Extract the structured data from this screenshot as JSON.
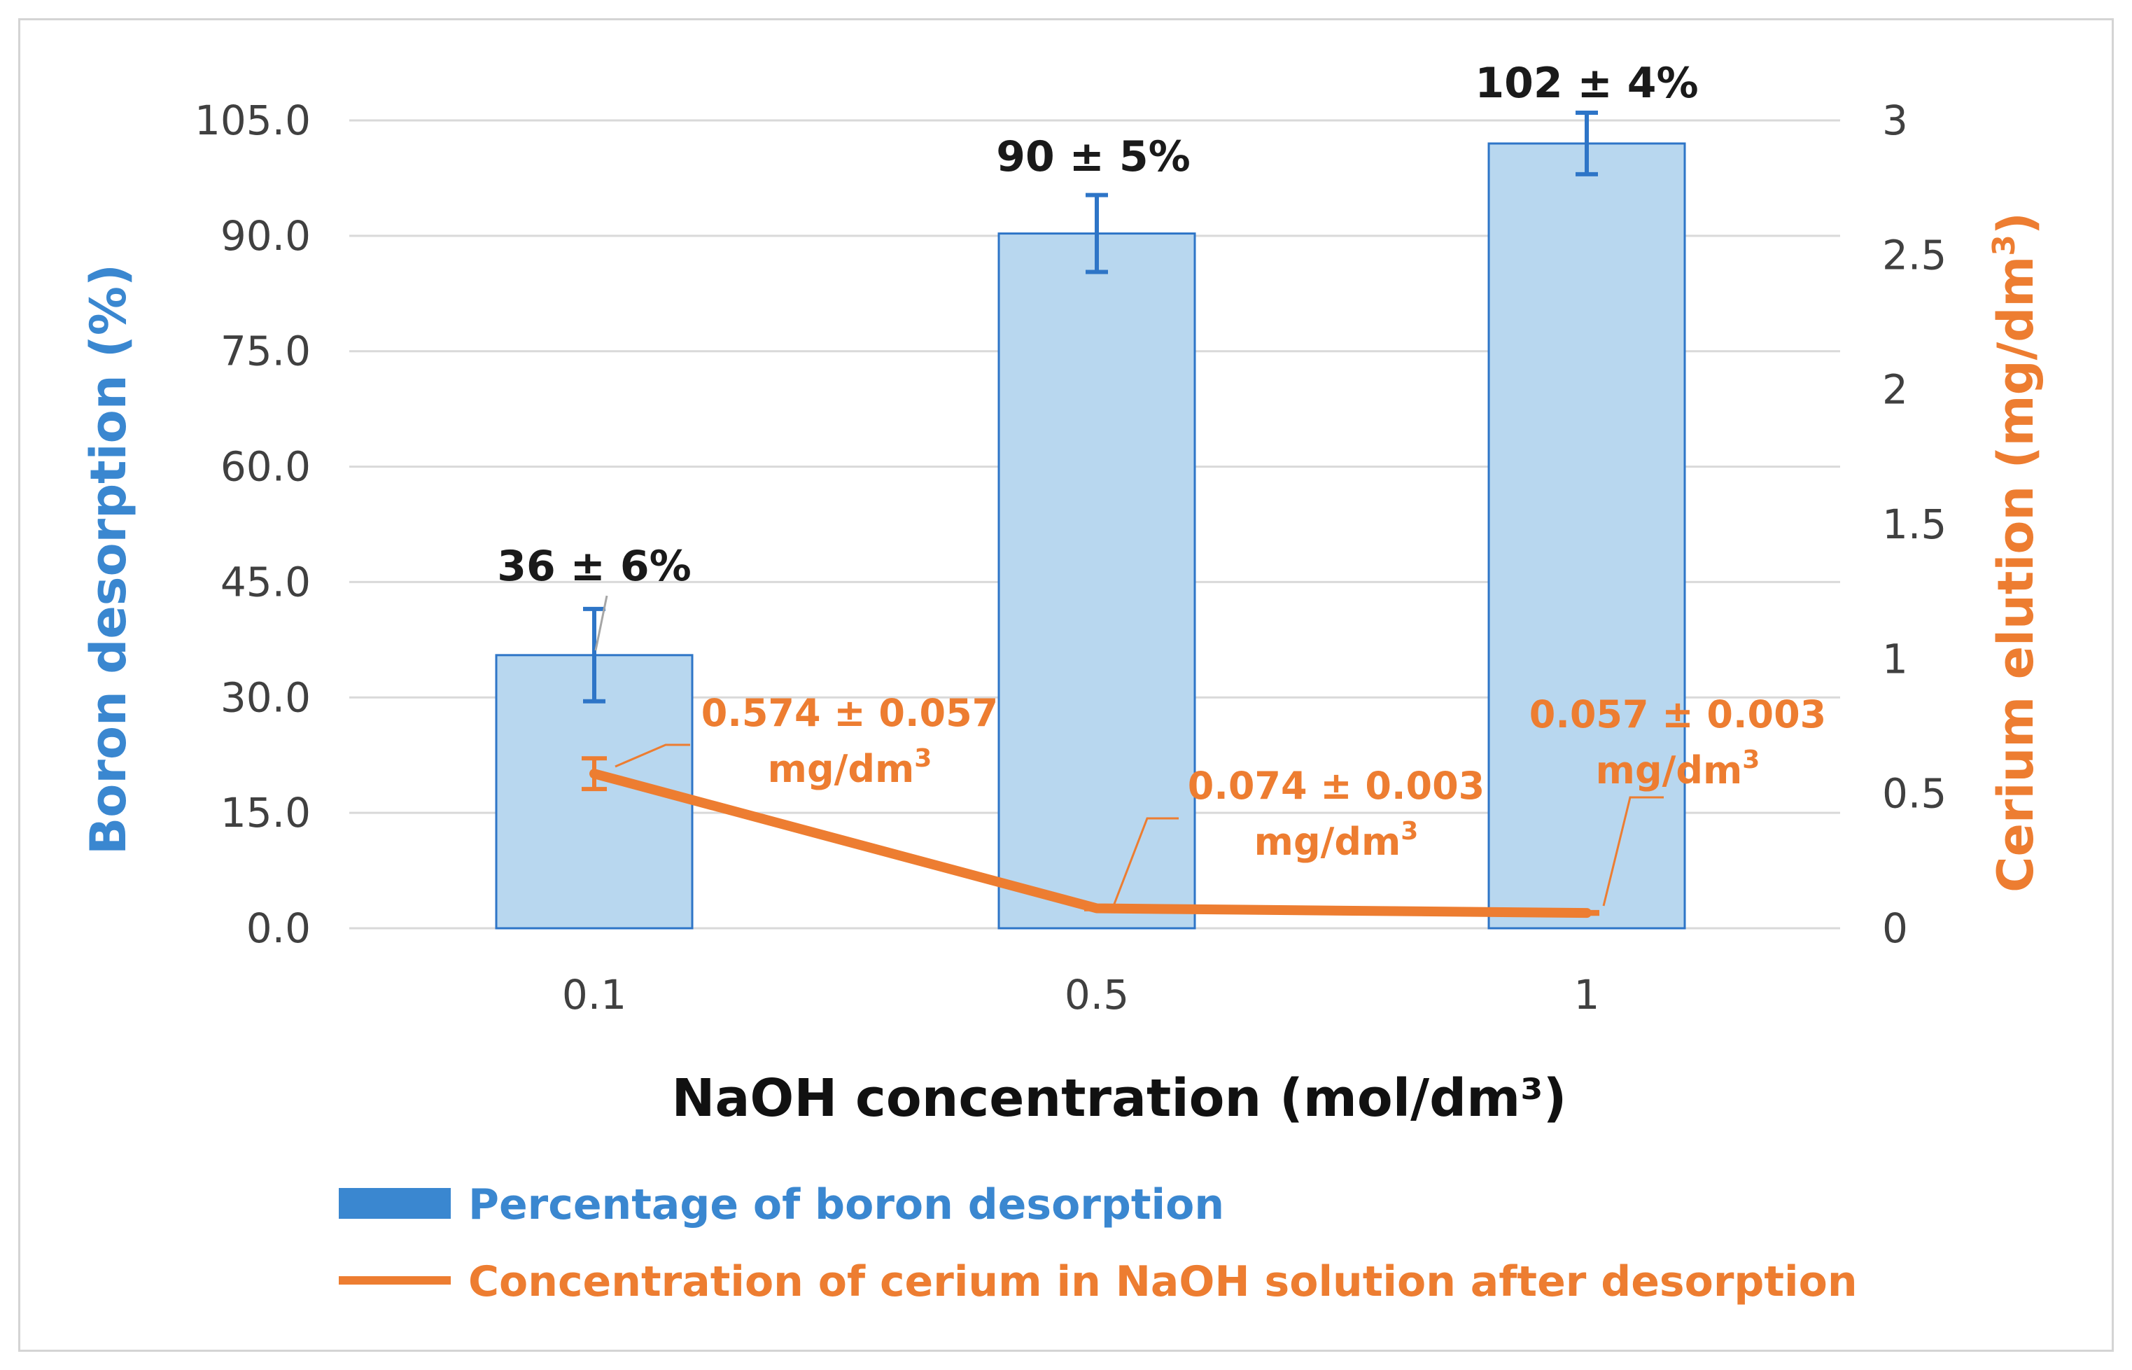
{
  "chart_data": {
    "type": "bar+line",
    "categories": [
      "0.1",
      "0.5",
      "1"
    ],
    "xlabel": "NaOH concentration  (mol/dm³)",
    "series": [
      {
        "name": "Percentage of boron desorption",
        "type": "bar",
        "axis": "left",
        "values": [
          35.5,
          90.3,
          102.0
        ],
        "errors": [
          6,
          5,
          4
        ],
        "labels": [
          "36 ± 6%",
          "90 ± 5%",
          "102 ± 4%"
        ]
      },
      {
        "name": "Concentration of cerium in NaOH solution after desorption",
        "type": "line",
        "axis": "right",
        "values": [
          0.574,
          0.074,
          0.057
        ],
        "errors": [
          0.057,
          0.003,
          0.003
        ],
        "labels": [
          {
            "value": "0.574 ± 0.057",
            "unit": "mg/dm",
            "sup": "3"
          },
          {
            "value": "0.074 ± 0.003",
            "unit": "mg/dm",
            "sup": "3"
          },
          {
            "value": "0.057 ± 0.003",
            "unit": "mg/dm",
            "sup": "3"
          }
        ]
      }
    ],
    "y_left": {
      "label": "Boron desorption (%)",
      "ylim": [
        0,
        105
      ],
      "ticks": [
        "0.0",
        "15.0",
        "30.0",
        "45.0",
        "60.0",
        "75.0",
        "90.0",
        "105.0"
      ]
    },
    "y_right": {
      "label": "Cerium elution (mg/dm",
      "label_sup": "3",
      "label_close": ")",
      "ylim": [
        0,
        3
      ],
      "ticks": [
        "0",
        "0.5",
        "1",
        "1.5",
        "2",
        "2.5",
        "3"
      ]
    },
    "grid": true,
    "legend_position": "bottom-left"
  },
  "colors": {
    "bar_fill": "#b8d7ef",
    "bar_stroke": "#2e75c7",
    "error_bar": "#2e75c7",
    "line": "#ed7d31",
    "left_axis_title": "#3a87d0",
    "right_axis_title": "#ed7d31",
    "grid": "#d9d9d9"
  }
}
